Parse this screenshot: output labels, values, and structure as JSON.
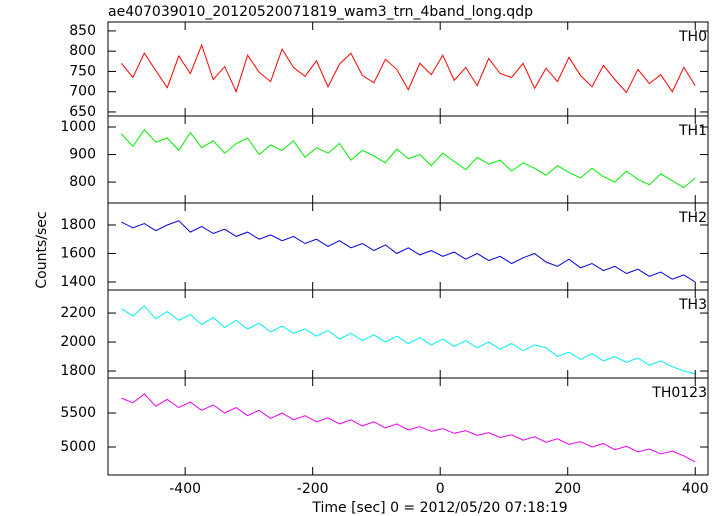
{
  "chart_data": {
    "type": "line",
    "title": "ae407039010_20120520071819_wam3_trn_4band_long.qdp",
    "x_label": "Time [sec] 0 = 2012/05/20 07:18:19",
    "y_label": "Counts/sec",
    "xlim": [
      -521,
      420
    ],
    "xticks": [
      -400,
      -200,
      0,
      200,
      400
    ],
    "x": [
      -500,
      -482,
      -464,
      -446,
      -428,
      -410,
      -392,
      -374,
      -356,
      -338,
      -320,
      -302,
      -284,
      -266,
      -248,
      -230,
      -212,
      -194,
      -176,
      -158,
      -140,
      -122,
      -104,
      -86,
      -68,
      -50,
      -32,
      -14,
      4,
      22,
      40,
      58,
      76,
      94,
      112,
      130,
      148,
      166,
      184,
      202,
      220,
      238,
      256,
      274,
      292,
      310,
      328,
      346,
      364,
      382,
      400
    ],
    "series": [
      {
        "name": "TH0",
        "color": "#ff0000",
        "ylim": [
          640,
          872
        ],
        "yticks": [
          650,
          700,
          750,
          800,
          850
        ],
        "values": [
          770,
          735,
          795,
          752,
          710,
          788,
          745,
          815,
          730,
          762,
          700,
          790,
          748,
          725,
          805,
          760,
          738,
          776,
          712,
          768,
          795,
          740,
          722,
          780,
          755,
          705,
          770,
          742,
          790,
          728,
          760,
          715,
          782,
          745,
          735,
          770,
          708,
          758,
          725,
          785,
          740,
          712,
          765,
          730,
          698,
          755,
          720,
          742,
          700,
          760,
          715
        ]
      },
      {
        "name": "TH1",
        "color": "#00ee00",
        "ylim": [
          724,
          1040
        ],
        "yticks": [
          800,
          900,
          1000
        ],
        "values": [
          975,
          930,
          990,
          945,
          960,
          915,
          980,
          925,
          950,
          905,
          940,
          960,
          900,
          935,
          915,
          950,
          890,
          925,
          905,
          940,
          880,
          915,
          895,
          870,
          920,
          885,
          900,
          860,
          905,
          875,
          845,
          890,
          865,
          880,
          840,
          870,
          850,
          825,
          860,
          835,
          815,
          850,
          820,
          800,
          840,
          810,
          790,
          830,
          805,
          780,
          815
        ]
      },
      {
        "name": "TH2",
        "color": "#0000dd",
        "ylim": [
          1344,
          1954
        ],
        "yticks": [
          1400,
          1600,
          1800
        ],
        "values": [
          1820,
          1780,
          1810,
          1760,
          1800,
          1830,
          1750,
          1790,
          1740,
          1770,
          1720,
          1750,
          1700,
          1730,
          1690,
          1720,
          1670,
          1700,
          1650,
          1690,
          1640,
          1670,
          1620,
          1660,
          1600,
          1640,
          1590,
          1620,
          1580,
          1610,
          1560,
          1600,
          1550,
          1580,
          1530,
          1570,
          1600,
          1540,
          1510,
          1560,
          1500,
          1530,
          1480,
          1510,
          1460,
          1490,
          1440,
          1470,
          1420,
          1450,
          1400
        ]
      },
      {
        "name": "TH3",
        "color": "#00eeee",
        "ylim": [
          1752,
          2359
        ],
        "yticks": [
          1800,
          2000,
          2200
        ],
        "values": [
          2230,
          2180,
          2250,
          2160,
          2210,
          2150,
          2190,
          2120,
          2170,
          2100,
          2150,
          2090,
          2130,
          2070,
          2110,
          2060,
          2090,
          2040,
          2080,
          2020,
          2060,
          2010,
          2050,
          2000,
          2040,
          1990,
          2030,
          1980,
          2020,
          1970,
          2010,
          1960,
          2000,
          1950,
          1990,
          1940,
          1980,
          1960,
          1900,
          1930,
          1880,
          1920,
          1870,
          1900,
          1860,
          1890,
          1840,
          1870,
          1830,
          1800,
          1780
        ]
      },
      {
        "name": "TH0123",
        "color": "#ee00ee",
        "ylim": [
          4588,
          6015
        ],
        "yticks": [
          5000,
          5500
        ],
        "values": [
          5720,
          5650,
          5780,
          5600,
          5700,
          5580,
          5660,
          5540,
          5620,
          5500,
          5580,
          5460,
          5540,
          5420,
          5500,
          5400,
          5460,
          5370,
          5430,
          5340,
          5400,
          5310,
          5370,
          5280,
          5340,
          5250,
          5300,
          5230,
          5270,
          5200,
          5240,
          5170,
          5210,
          5140,
          5180,
          5100,
          5150,
          5070,
          5120,
          5040,
          5080,
          5000,
          5050,
          4960,
          5010,
          4930,
          4970,
          4900,
          4940,
          4870,
          4780
        ]
      }
    ]
  }
}
